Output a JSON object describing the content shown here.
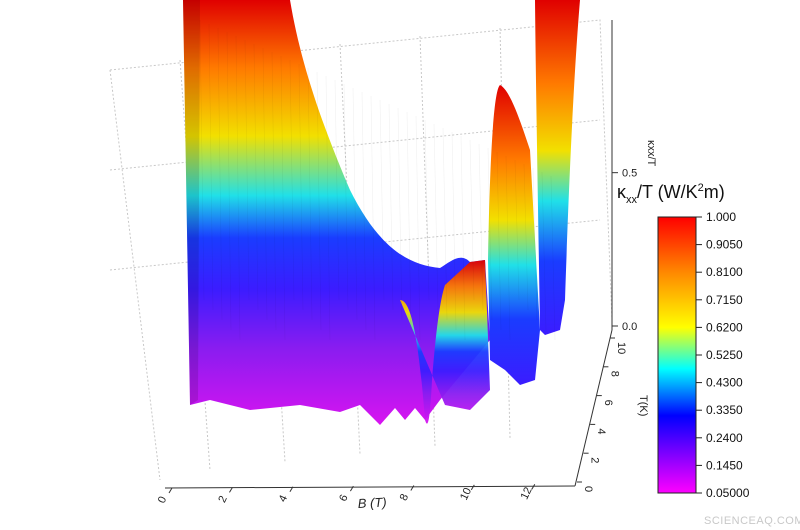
{
  "chart_data": {
    "type": "surface",
    "x_axis": {
      "label": "B (T)",
      "ticks": [
        "0",
        "2",
        "4",
        "6",
        "8",
        "10",
        "12"
      ],
      "range": [
        0,
        13
      ]
    },
    "y_axis": {
      "label": "T(K)",
      "ticks": [
        "0",
        "2",
        "4",
        "6",
        "8",
        "10"
      ],
      "range": [
        0,
        10
      ]
    },
    "z_axis": {
      "label": "κxx/T",
      "ticks": [
        "0.0",
        "0.5"
      ],
      "range": [
        0,
        0.9
      ]
    },
    "colorbar": {
      "title_main": "κ",
      "title_sub": "xx",
      "title_mid": "/T (W/K",
      "title_sup": "2",
      "title_end": "m)",
      "labels": [
        "1.000",
        "0.9050",
        "0.8100",
        "0.7150",
        "0.6200",
        "0.5250",
        "0.4300",
        "0.3350",
        "0.2400",
        "0.1450",
        "0.05000"
      ],
      "colors": [
        "#ff0000",
        "#ff8800",
        "#ffff00",
        "#00ffff",
        "#0000ff",
        "#ff00ff"
      ]
    },
    "surface": [
      {
        "B": 0.3,
        "low_T_value": 0.3,
        "high_T_value": 1.0
      },
      {
        "B": 4.0,
        "low_T_value": 0.26,
        "high_T_value": 0.55
      },
      {
        "B": 7.0,
        "low_T_value": 0.22,
        "high_T_value": 0.2
      },
      {
        "B": 8.5,
        "low_T_value": 0.18,
        "high_T_value": 0.32
      },
      {
        "B": 10.5,
        "low_T_value": 0.3,
        "high_T_value": 0.75
      },
      {
        "B": 12.5,
        "low_T_value": 0.35,
        "high_T_value": 1.0
      }
    ]
  },
  "watermark": "SCIENCEAQ.COM"
}
